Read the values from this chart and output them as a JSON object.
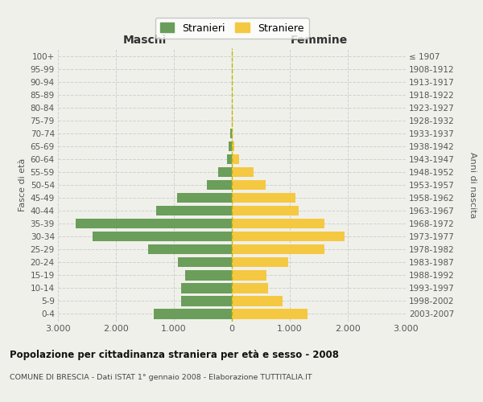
{
  "age_groups": [
    "0-4",
    "5-9",
    "10-14",
    "15-19",
    "20-24",
    "25-29",
    "30-34",
    "35-39",
    "40-44",
    "45-49",
    "50-54",
    "55-59",
    "60-64",
    "65-69",
    "70-74",
    "75-79",
    "80-84",
    "85-89",
    "90-94",
    "95-99",
    "100+"
  ],
  "birth_years": [
    "2003-2007",
    "1998-2002",
    "1993-1997",
    "1988-1992",
    "1983-1987",
    "1978-1982",
    "1973-1977",
    "1968-1972",
    "1963-1967",
    "1958-1962",
    "1953-1957",
    "1948-1952",
    "1943-1947",
    "1938-1942",
    "1933-1937",
    "1928-1932",
    "1923-1927",
    "1918-1922",
    "1913-1917",
    "1908-1912",
    "≤ 1907"
  ],
  "maschi": [
    1350,
    870,
    870,
    800,
    930,
    1450,
    2400,
    2700,
    1300,
    950,
    430,
    230,
    90,
    50,
    30,
    0,
    0,
    0,
    0,
    0,
    0
  ],
  "femmine": [
    1300,
    870,
    620,
    600,
    970,
    1600,
    1950,
    1600,
    1150,
    1100,
    580,
    380,
    120,
    40,
    20,
    10,
    0,
    0,
    0,
    0,
    0
  ],
  "male_color": "#6a9e5a",
  "female_color": "#f5c842",
  "bg_color": "#f0f0eb",
  "grid_color": "#cccccc",
  "title": "Popolazione per cittadinanza straniera per età e sesso - 2008",
  "subtitle": "COMUNE DI BRESCIA - Dati ISTAT 1° gennaio 2008 - Elaborazione TUTTITALIA.IT",
  "legend_male": "Stranieri",
  "legend_female": "Straniere",
  "xlabel_left": "Maschi",
  "xlabel_right": "Femmine",
  "ylabel_left": "Fasce di età",
  "ylabel_right": "Anni di nascita",
  "xlim": 3000,
  "xtick_vals": [
    -3000,
    -2000,
    -1000,
    0,
    1000,
    2000,
    3000
  ],
  "xtick_labels": [
    "3.000",
    "2.000",
    "1.000",
    "0",
    "1.000",
    "2.000",
    "3.000"
  ]
}
